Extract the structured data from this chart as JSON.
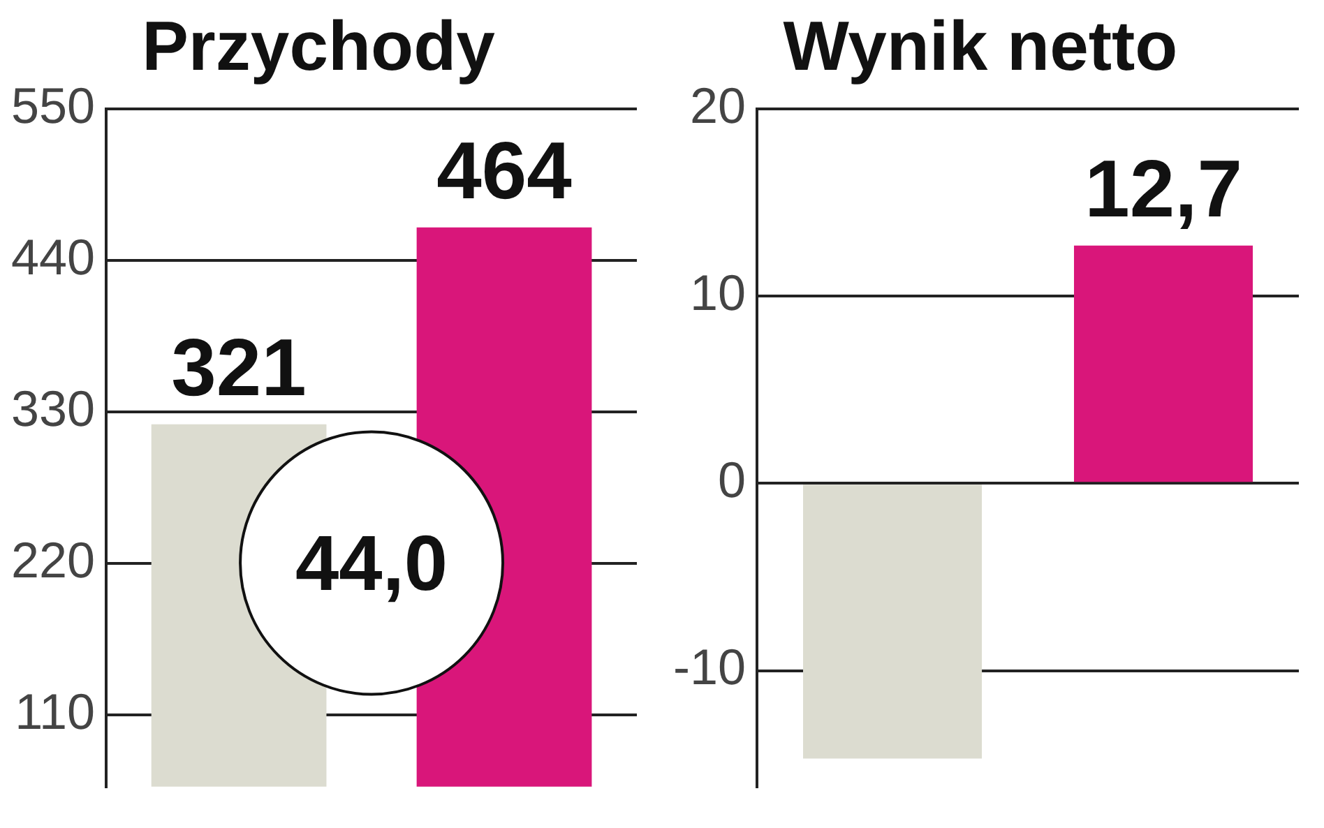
{
  "chart_data": [
    {
      "type": "bar",
      "title": "Przychody",
      "categories": [
        null,
        null
      ],
      "values": [
        321,
        464
      ],
      "colors": [
        "#dcdcd0",
        "#d9167a"
      ],
      "ylim": [
        58,
        550
      ],
      "yticks": [
        110,
        220,
        330,
        440,
        550
      ],
      "grid": "y",
      "tick_labels": "y",
      "data_labels": true,
      "annotations": [
        "44,0"
      ]
    },
    {
      "type": "bar",
      "title": "Wynik netto",
      "categories": [
        null,
        null
      ],
      "values": [
        -14.7,
        12.7
      ],
      "colors": [
        "#dcdcd0",
        "#d9167a"
      ],
      "value_labels": [
        null,
        "12,7"
      ],
      "ylim": [
        -16.2,
        20
      ],
      "yticks": [
        -10,
        0,
        10,
        20
      ],
      "grid": "y",
      "tick_labels": "y"
    }
  ]
}
